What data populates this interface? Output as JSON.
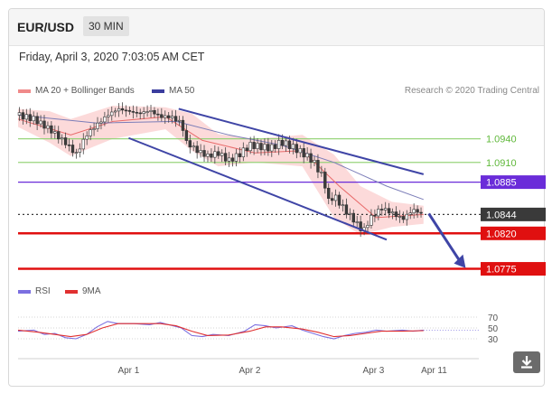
{
  "header": {
    "symbol": "EUR/USD",
    "timeframe": "30 MIN"
  },
  "timestamp": "Friday, April 3, 2020 7:03:05 AM CET",
  "legend": {
    "ma20_bb": "MA 20 + Bollinger Bands",
    "ma50": "MA 50",
    "ma20_color": "#f08a8a",
    "ma50_color": "#3b3d9e"
  },
  "attribution": "Research © 2020 Trading Central",
  "rsi_legend": {
    "rsi": "RSI",
    "ma9": "9MA",
    "rsi_color": "#7b6fe0",
    "ma9_color": "#e03030"
  },
  "download_icon": "download-arrow-icon",
  "chart_data": [
    {
      "type": "candlestick",
      "title": "EUR/USD 30 MIN",
      "x_ticks": [
        "Apr 1",
        "Apr 2",
        "Apr 3",
        "Apr 11"
      ],
      "ylim": [
        1.0755,
        1.099
      ],
      "grid": false,
      "price_path": [
        [
          0,
          1.097
        ],
        [
          6,
          1.0965
        ],
        [
          12,
          1.0952
        ],
        [
          18,
          1.0935
        ],
        [
          22,
          1.092
        ],
        [
          26,
          1.0945
        ],
        [
          30,
          1.0958
        ],
        [
          34,
          1.097
        ],
        [
          38,
          1.0978
        ],
        [
          42,
          1.0975
        ],
        [
          46,
          1.0972
        ],
        [
          50,
          1.0976
        ],
        [
          54,
          1.0968
        ],
        [
          58,
          1.0968
        ],
        [
          62,
          1.096
        ],
        [
          64,
          1.0935
        ],
        [
          68,
          1.0925
        ],
        [
          72,
          1.0918
        ],
        [
          76,
          1.0922
        ],
        [
          80,
          1.0912
        ],
        [
          84,
          1.092
        ],
        [
          88,
          1.0932
        ],
        [
          92,
          1.093
        ],
        [
          96,
          1.0928
        ],
        [
          100,
          1.0936
        ],
        [
          104,
          1.093
        ],
        [
          108,
          1.0922
        ],
        [
          112,
          1.0912
        ],
        [
          116,
          1.089
        ],
        [
          118,
          1.086
        ],
        [
          120,
          1.0868
        ],
        [
          124,
          1.085
        ],
        [
          128,
          1.0835
        ],
        [
          131,
          1.0822
        ],
        [
          134,
          1.084
        ],
        [
          138,
          1.0852
        ],
        [
          142,
          1.0846
        ],
        [
          146,
          1.0838
        ],
        [
          150,
          1.085
        ],
        [
          154,
          1.0844
        ]
      ],
      "ma20_path": [
        [
          0,
          1.0965
        ],
        [
          20,
          1.0945
        ],
        [
          36,
          1.0962
        ],
        [
          56,
          1.0968
        ],
        [
          70,
          1.0938
        ],
        [
          90,
          1.0922
        ],
        [
          108,
          1.0925
        ],
        [
          122,
          1.088
        ],
        [
          136,
          1.084
        ],
        [
          154,
          1.0844
        ]
      ],
      "ma50_path": [
        [
          0,
          1.097
        ],
        [
          30,
          1.096
        ],
        [
          60,
          1.0962
        ],
        [
          80,
          1.0945
        ],
        [
          100,
          1.0932
        ],
        [
          120,
          1.091
        ],
        [
          140,
          1.088
        ],
        [
          154,
          1.0863
        ]
      ],
      "bollinger_upper": [
        [
          0,
          1.0978
        ],
        [
          12,
          1.0975
        ],
        [
          20,
          1.0965
        ],
        [
          36,
          1.0982
        ],
        [
          56,
          1.098
        ],
        [
          66,
          1.0972
        ],
        [
          76,
          1.0946
        ],
        [
          90,
          1.094
        ],
        [
          108,
          1.0945
        ],
        [
          120,
          1.092
        ],
        [
          130,
          1.088
        ],
        [
          142,
          1.086
        ],
        [
          154,
          1.0855
        ]
      ],
      "bollinger_lower": [
        [
          0,
          1.0955
        ],
        [
          12,
          1.0935
        ],
        [
          20,
          1.0918
        ],
        [
          36,
          1.094
        ],
        [
          56,
          1.0952
        ],
        [
          66,
          1.0925
        ],
        [
          76,
          1.0905
        ],
        [
          90,
          1.091
        ],
        [
          108,
          1.0905
        ],
        [
          120,
          1.084
        ],
        [
          130,
          1.0818
        ],
        [
          142,
          1.0828
        ],
        [
          154,
          1.0832
        ]
      ],
      "channel_upper": {
        "start": [
          61,
          1.0978
        ],
        "end": [
          154,
          1.0895
        ]
      },
      "channel_lower": {
        "start": [
          42,
          1.0941
        ],
        "end": [
          140,
          1.0812
        ]
      },
      "forecast_arrow": {
        "start": [
          156,
          1.0845
        ],
        "end": [
          170,
          1.0776
        ]
      },
      "levels": [
        {
          "value": 1.094,
          "label": "1.0940",
          "color": "#8ed16f",
          "style": "resistance"
        },
        {
          "value": 1.091,
          "label": "1.0910",
          "color": "#8ed16f",
          "style": "resistance"
        },
        {
          "value": 1.0885,
          "label": "1.0885",
          "color": "#6a2cd9",
          "style": "pivot"
        },
        {
          "value": 1.0844,
          "label": "1.0844",
          "color": "#3a3a3a",
          "style": "last"
        },
        {
          "value": 1.082,
          "label": "1.0820",
          "color": "#e01010",
          "style": "support"
        },
        {
          "value": 1.0775,
          "label": "1.0775",
          "color": "#e01010",
          "style": "support"
        }
      ]
    },
    {
      "type": "line",
      "title": "RSI",
      "ylim": [
        0,
        100
      ],
      "y_ticks": [
        70,
        50,
        30
      ],
      "series": [
        {
          "name": "RSI",
          "values": [
            [
              0,
              44
            ],
            [
              6,
              46
            ],
            [
              10,
              38
            ],
            [
              14,
              40
            ],
            [
              18,
              32
            ],
            [
              22,
              30
            ],
            [
              26,
              38
            ],
            [
              30,
              52
            ],
            [
              34,
              62
            ],
            [
              38,
              58
            ],
            [
              44,
              58
            ],
            [
              50,
              56
            ],
            [
              54,
              60
            ],
            [
              58,
              55
            ],
            [
              62,
              50
            ],
            [
              66,
              36
            ],
            [
              70,
              34
            ],
            [
              74,
              38
            ],
            [
              80,
              36
            ],
            [
              86,
              44
            ],
            [
              90,
              56
            ],
            [
              94,
              54
            ],
            [
              98,
              50
            ],
            [
              104,
              54
            ],
            [
              108,
              46
            ],
            [
              112,
              40
            ],
            [
              116,
              34
            ],
            [
              120,
              30
            ],
            [
              124,
              36
            ],
            [
              128,
              40
            ],
            [
              132,
              42
            ],
            [
              136,
              46
            ],
            [
              140,
              44
            ],
            [
              146,
              46
            ],
            [
              150,
              44
            ],
            [
              154,
              46
            ]
          ]
        },
        {
          "name": "9MA",
          "values": [
            [
              0,
              46
            ],
            [
              8,
              42
            ],
            [
              14,
              38
            ],
            [
              20,
              34
            ],
            [
              26,
              38
            ],
            [
              32,
              50
            ],
            [
              38,
              58
            ],
            [
              46,
              58
            ],
            [
              54,
              58
            ],
            [
              60,
              54
            ],
            [
              66,
              44
            ],
            [
              72,
              36
            ],
            [
              80,
              37
            ],
            [
              88,
              44
            ],
            [
              94,
              52
            ],
            [
              100,
              52
            ],
            [
              108,
              48
            ],
            [
              114,
              42
            ],
            [
              120,
              34
            ],
            [
              126,
              36
            ],
            [
              132,
              40
            ],
            [
              138,
              44
            ],
            [
              146,
              44
            ],
            [
              154,
              45
            ]
          ]
        }
      ]
    }
  ]
}
